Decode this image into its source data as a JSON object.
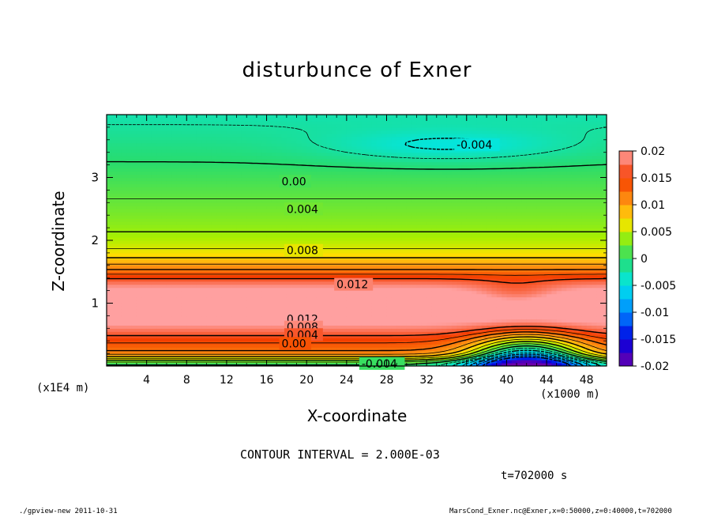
{
  "chart_data": {
    "type": "heatmap",
    "title": "disturbunce of Exner",
    "xlabel": "X-coordinate",
    "ylabel": "Z-coordinate",
    "x_unit": "(x1000 m)",
    "y_unit": "(x1E4 m)",
    "xlim": [
      0,
      50
    ],
    "ylim": [
      0,
      4
    ],
    "x_ticks": [
      4,
      8,
      12,
      16,
      20,
      24,
      28,
      32,
      36,
      40,
      44,
      48
    ],
    "y_ticks": [
      1,
      2,
      3
    ],
    "colorbar": {
      "range": [
        -0.02,
        0.02
      ],
      "ticks": [
        0.02,
        0.015,
        0.01,
        0.005,
        0,
        -0.005,
        -0.01,
        -0.015,
        -0.02
      ],
      "tick_labels": [
        "0.02",
        "0.015",
        "0.01",
        "0.005",
        "0",
        "-0.005",
        "-0.01",
        "-0.015",
        "-0.02"
      ]
    },
    "contour_interval": 0.002,
    "contour_labels": [
      {
        "text": "-0.004",
        "x": 35,
        "z": 3.52
      },
      {
        "text": "0.00",
        "x": 17.5,
        "z": 2.94
      },
      {
        "text": "0.004",
        "x": 18,
        "z": 2.5
      },
      {
        "text": "0.008",
        "x": 18,
        "z": 1.84
      },
      {
        "text": "0.012",
        "x": 23,
        "z": 1.3
      },
      {
        "text": "0.012",
        "x": 18,
        "z": 0.75
      },
      {
        "text": "0.008",
        "x": 18,
        "z": 0.62
      },
      {
        "text": "0.004",
        "x": 18,
        "z": 0.5
      },
      {
        "text": "0.00",
        "x": 17.5,
        "z": 0.36
      },
      {
        "text": "-0.004",
        "x": 25.5,
        "z": 0.04
      }
    ],
    "features": {
      "max_band_z": 1.0,
      "max_value_approx": 0.016,
      "min_region": {
        "x": 42,
        "z": 0.2,
        "value_approx": -0.008
      }
    }
  },
  "annotations": {
    "contour_interval_text": "CONTOUR INTERVAL = 2.000E-03",
    "time_text": "t=702000 s",
    "footer_left": "./gpview-new   2011-10-31",
    "footer_right": "MarsCond_Exner.nc@Exner,x=0:50000,z=0:40000,t=702000"
  }
}
